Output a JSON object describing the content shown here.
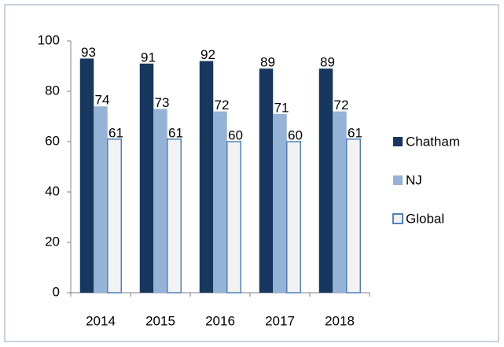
{
  "chart_data": {
    "type": "bar",
    "categories": [
      "2014",
      "2015",
      "2016",
      "2017",
      "2018"
    ],
    "series": [
      {
        "name": "Chatham",
        "color": "#17375e",
        "values": [
          93,
          91,
          92,
          89,
          89
        ]
      },
      {
        "name": "NJ",
        "color": "#95b3d7",
        "values": [
          74,
          73,
          72,
          71,
          72
        ]
      },
      {
        "name": "Global",
        "color": "#f2f2f2",
        "edge": "#4f81bd",
        "values": [
          61,
          61,
          60,
          60,
          61
        ]
      }
    ],
    "ylim": [
      0,
      100
    ],
    "yticks": [
      0,
      20,
      40,
      60,
      80,
      100
    ],
    "grid": false,
    "legend": "right"
  }
}
